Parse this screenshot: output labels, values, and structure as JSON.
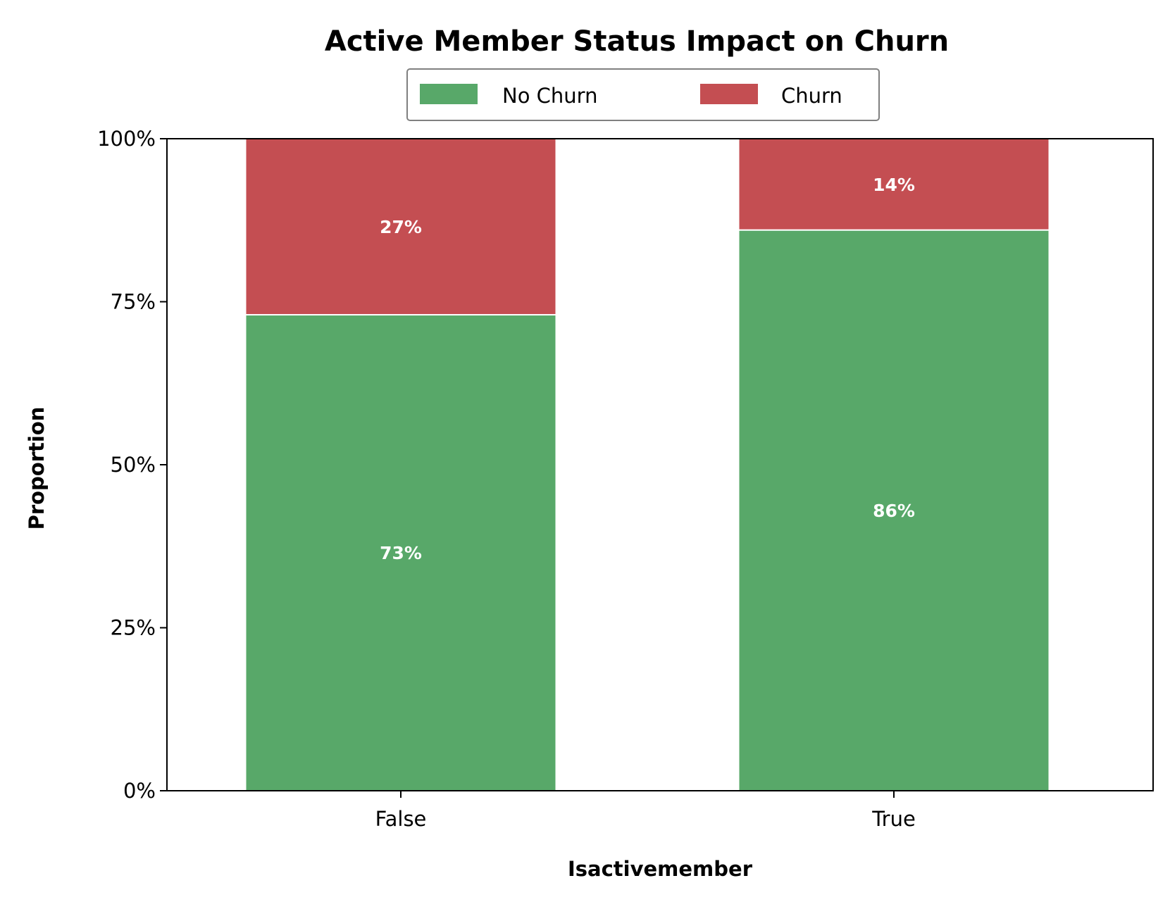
{
  "chart_data": {
    "type": "bar",
    "stacked": true,
    "title": "Active Member Status Impact on Churn",
    "xlabel": "Isactivemember",
    "ylabel": "Proportion",
    "categories": [
      "False",
      "True"
    ],
    "ylim": [
      0,
      100
    ],
    "y_ticks": [
      "0%",
      "25%",
      "50%",
      "75%",
      "100%"
    ],
    "y_tick_values": [
      0,
      25,
      50,
      75,
      100
    ],
    "legend_position": "top-center",
    "series": [
      {
        "name": "No Churn",
        "color": "#58a869",
        "values": [
          73,
          86
        ],
        "labels": [
          "73%",
          "86%"
        ]
      },
      {
        "name": "Churn",
        "color": "#c44e52",
        "values": [
          27,
          14
        ],
        "labels": [
          "27%",
          "14%"
        ]
      }
    ]
  }
}
